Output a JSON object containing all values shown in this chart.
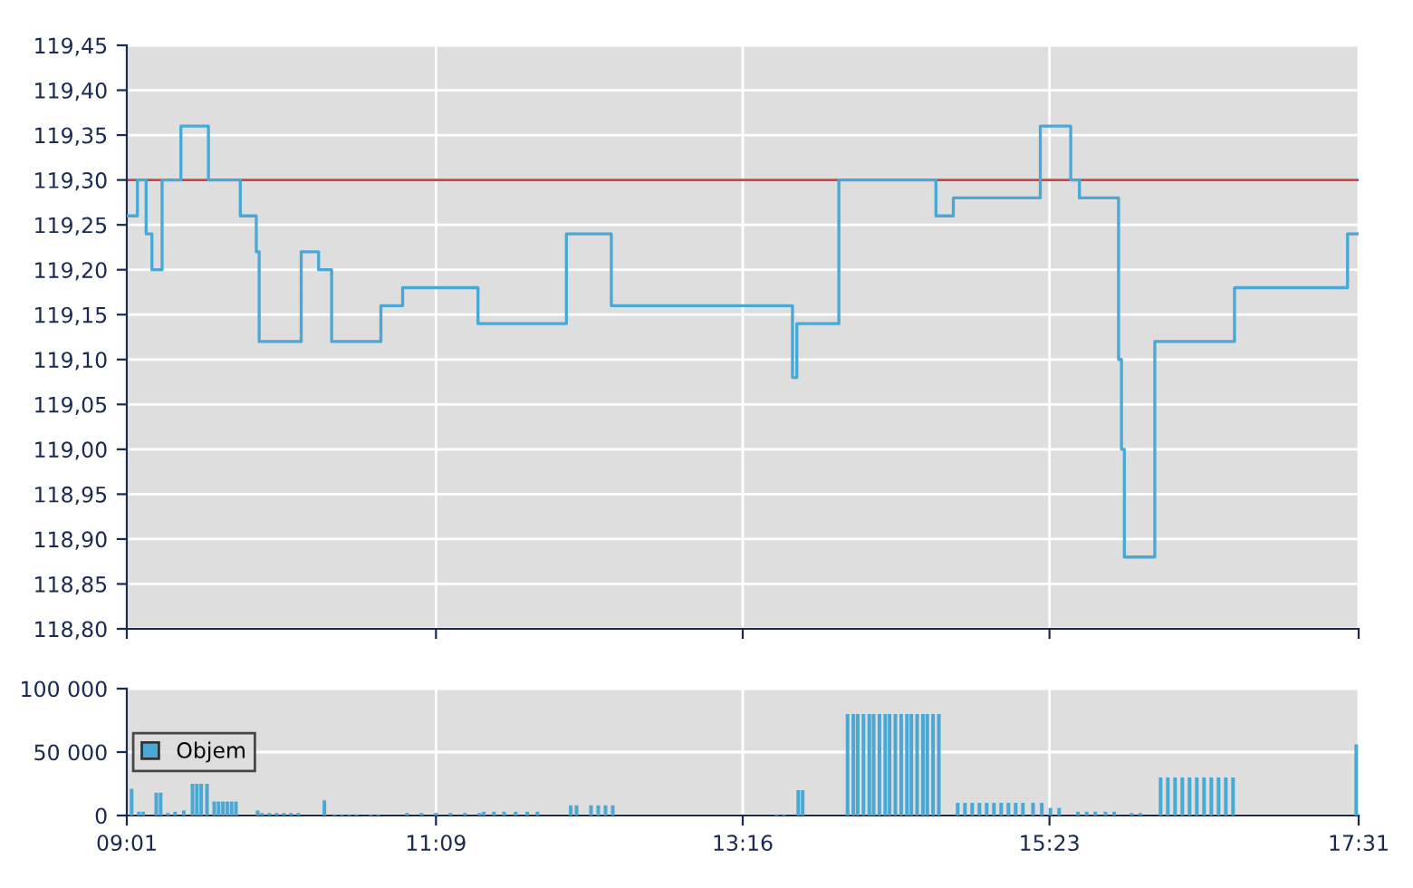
{
  "chart_data": [
    {
      "type": "line",
      "x": [
        9.0167,
        9.09,
        9.09,
        9.15,
        9.15,
        9.19,
        9.19,
        9.26,
        9.26,
        9.39,
        9.39,
        9.58,
        9.58,
        9.8,
        9.8,
        9.91,
        9.91,
        9.93,
        9.93,
        10.22,
        10.22,
        10.34,
        10.34,
        10.43,
        10.43,
        10.77,
        10.77,
        10.92,
        10.92,
        11.44,
        11.44,
        12.05,
        12.05,
        12.36,
        12.36,
        13.61,
        13.61,
        13.64,
        13.64,
        13.93,
        13.93,
        14.6,
        14.6,
        14.72,
        14.72,
        15.32,
        15.32,
        15.53,
        15.53,
        15.59,
        15.59,
        15.86,
        15.86,
        15.88,
        15.88,
        15.9,
        15.9,
        16.11,
        16.11,
        16.66,
        16.66,
        17.44,
        17.44,
        17.5167
      ],
      "series": [
        {
          "color": "#4aa8d4",
          "values": [
            119.26,
            119.26,
            119.3,
            119.3,
            119.24,
            119.24,
            119.2,
            119.2,
            119.3,
            119.3,
            119.36,
            119.36,
            119.3,
            119.3,
            119.26,
            119.26,
            119.22,
            119.22,
            119.12,
            119.12,
            119.22,
            119.22,
            119.2,
            119.2,
            119.12,
            119.12,
            119.16,
            119.16,
            119.18,
            119.18,
            119.14,
            119.14,
            119.24,
            119.24,
            119.16,
            119.16,
            119.08,
            119.08,
            119.14,
            119.14,
            119.3,
            119.3,
            119.26,
            119.26,
            119.28,
            119.28,
            119.36,
            119.36,
            119.3,
            119.3,
            119.28,
            119.28,
            119.1,
            119.1,
            119.0,
            119.0,
            118.88,
            118.88,
            119.12,
            119.12,
            119.18,
            119.18,
            119.24,
            119.24
          ]
        }
      ],
      "xlim": [
        9.0167,
        17.5167
      ],
      "xticks": [
        {
          "value": 9.0167,
          "label": null
        },
        {
          "value": 11.15,
          "label": null
        },
        {
          "value": 13.2667,
          "label": null
        },
        {
          "value": 15.3833,
          "label": null
        },
        {
          "value": 17.5167,
          "label": null
        }
      ],
      "ylim": [
        118.8,
        119.45
      ],
      "yticks": [
        {
          "value": 118.8,
          "label": "118,80"
        },
        {
          "value": 118.85,
          "label": "118,85"
        },
        {
          "value": 118.9,
          "label": "118,90"
        },
        {
          "value": 118.95,
          "label": "118,95"
        },
        {
          "value": 119.0,
          "label": "119,00"
        },
        {
          "value": 119.05,
          "label": "119,05"
        },
        {
          "value": 119.1,
          "label": "119,10"
        },
        {
          "value": 119.15,
          "label": "119,15"
        },
        {
          "value": 119.2,
          "label": "119,20"
        },
        {
          "value": 119.25,
          "label": "119,25"
        },
        {
          "value": 119.3,
          "label": "119,30"
        },
        {
          "value": 119.35,
          "label": "119,35"
        },
        {
          "value": 119.4,
          "label": "119,40"
        },
        {
          "value": 119.45,
          "label": "119,45"
        }
      ],
      "ref_lines": [
        {
          "axis": "y",
          "value": 119.3,
          "color": "#cc4444"
        }
      ],
      "grid": true,
      "tick_labels": "y"
    },
    {
      "type": "bar",
      "x": [
        9.05,
        9.1,
        9.13,
        9.22,
        9.25,
        9.3,
        9.35,
        9.41,
        9.47,
        9.5,
        9.53,
        9.57,
        9.62,
        9.65,
        9.68,
        9.71,
        9.74,
        9.77,
        9.92,
        9.95,
        10.0,
        10.05,
        10.1,
        10.15,
        10.2,
        10.38,
        10.45,
        10.5,
        10.55,
        10.6,
        10.7,
        10.75,
        10.95,
        11.05,
        11.15,
        11.25,
        11.35,
        11.45,
        11.48,
        11.55,
        11.62,
        11.7,
        11.78,
        11.85,
        12.08,
        12.12,
        12.22,
        12.27,
        12.32,
        12.37,
        13.5,
        13.55,
        13.65,
        13.68,
        13.99,
        14.03,
        14.06,
        14.1,
        14.14,
        14.17,
        14.21,
        14.25,
        14.28,
        14.32,
        14.36,
        14.4,
        14.43,
        14.47,
        14.51,
        14.54,
        14.58,
        14.62,
        14.75,
        14.8,
        14.85,
        14.9,
        14.95,
        15.0,
        15.05,
        15.1,
        15.15,
        15.2,
        15.27,
        15.33,
        15.39,
        15.45,
        15.58,
        15.64,
        15.7,
        15.77,
        15.83,
        15.95,
        16.01,
        16.15,
        16.2,
        16.25,
        16.3,
        16.35,
        16.4,
        16.45,
        16.5,
        16.55,
        16.6,
        16.65,
        17.5
      ],
      "series": [
        {
          "name": "Objem",
          "color": "#4aa8d4",
          "values": [
            21000,
            3000,
            3000,
            18000,
            18000,
            2000,
            3000,
            4000,
            25000,
            25000,
            25000,
            25000,
            11000,
            11000,
            11000,
            11000,
            11000,
            11000,
            4000,
            2000,
            2000,
            2000,
            2000,
            2000,
            2000,
            12000,
            1000,
            1000,
            1000,
            1000,
            1000,
            1000,
            2000,
            2000,
            2000,
            2000,
            2000,
            2000,
            3000,
            3000,
            3000,
            3000,
            3000,
            3000,
            8000,
            8000,
            8000,
            8000,
            8000,
            8000,
            1000,
            1000,
            20000,
            20000,
            80000,
            80000,
            80000,
            80000,
            80000,
            80000,
            80000,
            80000,
            80000,
            80000,
            80000,
            80000,
            80000,
            80000,
            80000,
            80000,
            80000,
            80000,
            10000,
            10000,
            10000,
            10000,
            10000,
            10000,
            10000,
            10000,
            10000,
            10000,
            10000,
            10000,
            6000,
            6000,
            3000,
            3000,
            3000,
            3000,
            3000,
            2000,
            2000,
            30000,
            30000,
            30000,
            30000,
            30000,
            30000,
            30000,
            30000,
            30000,
            30000,
            30000,
            56000
          ]
        }
      ],
      "xlim": [
        9.0167,
        17.5167
      ],
      "xticks": [
        {
          "value": 9.0167,
          "label": "09:01"
        },
        {
          "value": 11.15,
          "label": "11:09"
        },
        {
          "value": 13.2667,
          "label": "13:16"
        },
        {
          "value": 15.3833,
          "label": "15:23"
        },
        {
          "value": 17.5167,
          "label": "17:31"
        }
      ],
      "ylim": [
        0,
        100000
      ],
      "yticks": [
        0,
        {
          "value": 50000,
          "label": "50 000"
        },
        {
          "value": 100000,
          "label": "100 000"
        }
      ],
      "grid": true,
      "legend": "left"
    }
  ]
}
